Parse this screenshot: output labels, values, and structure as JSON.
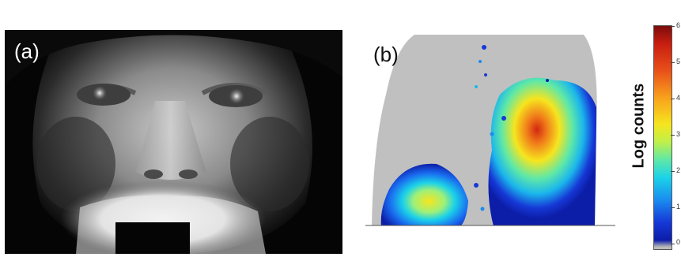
{
  "panels": {
    "a": {
      "label": "(a)"
    },
    "b": {
      "label": "(b)"
    }
  },
  "colorbar": {
    "label": "Log counts",
    "tick_labels": [
      "6",
      "5",
      "4",
      "3",
      "2",
      "1",
      "0"
    ],
    "colors": [
      "#7a0c0c",
      "#c81e10",
      "#f8a01c",
      "#f6e51e",
      "#5ee8a8",
      "#1a8cf0",
      "#0c1da8",
      "#bdbdbd"
    ]
  }
}
